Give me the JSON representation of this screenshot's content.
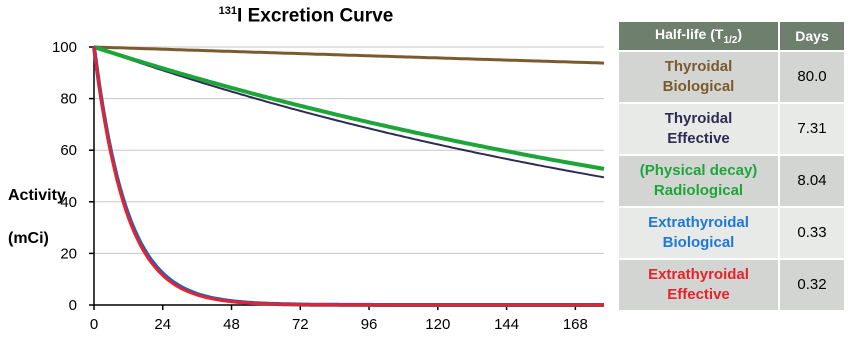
{
  "chart_data": {
    "type": "line",
    "title_sup": "131",
    "title_text": "I Excretion Curve",
    "ylabel_line1": "Activity",
    "ylabel_line2": "(mCi)",
    "xlabel": "",
    "xlim": [
      0,
      178
    ],
    "ylim": [
      0,
      100
    ],
    "x_ticks": [
      0,
      24,
      48,
      72,
      96,
      120,
      144,
      168
    ],
    "y_ticks": [
      0,
      20,
      40,
      60,
      80,
      100
    ],
    "grid": true,
    "series": [
      {
        "name": "Thyroidal Biological",
        "color": "#7b5a2e",
        "half_life_hours": 1920,
        "initial": 100
      },
      {
        "name": "Thyroidal Effective",
        "color": "#2e2c52",
        "half_life_hours": 175.44,
        "initial": 100
      },
      {
        "name": "(Physical decay) Radiological",
        "color": "#1ea53a",
        "half_life_hours": 192.96,
        "initial": 100
      },
      {
        "name": "Extrathyroidal Biological",
        "color": "#1f5fc4",
        "half_life_hours": 7.92,
        "initial": 100
      },
      {
        "name": "Extrathyroidal Effective",
        "color": "#e8222a",
        "half_life_hours": 7.68,
        "initial": 100
      }
    ]
  },
  "table": {
    "header_name": "Half-life (T",
    "header_sub": "1/2",
    "header_close": ")",
    "header_days": "Days",
    "rows": [
      {
        "line1": "Thyroidal",
        "line2": "Biological",
        "days": "80.0",
        "color": "#7b5a2e"
      },
      {
        "line1": "Thyroidal",
        "line2": "Effective",
        "days": "7.31",
        "color": "#2e2c52"
      },
      {
        "line1": "(Physical decay)",
        "line2": "Radiological",
        "days": "8.04",
        "color": "#1ea53a"
      },
      {
        "line1": "Extrathyroidal",
        "line2": "Biological",
        "days": "0.33",
        "color": "#1f78d8"
      },
      {
        "line1": "Extrathyroidal",
        "line2": "Effective",
        "days": "0.32",
        "color": "#e8222a"
      }
    ]
  }
}
